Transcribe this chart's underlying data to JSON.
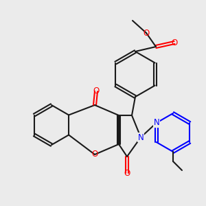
{
  "background_color": "#ebebeb",
  "bond_color": "#1a1a1a",
  "atom_colors": {
    "O": "#ff0000",
    "N": "#0000ff",
    "C": "#1a1a1a"
  },
  "figsize": [
    3.0,
    3.0
  ],
  "dpi": 100
}
